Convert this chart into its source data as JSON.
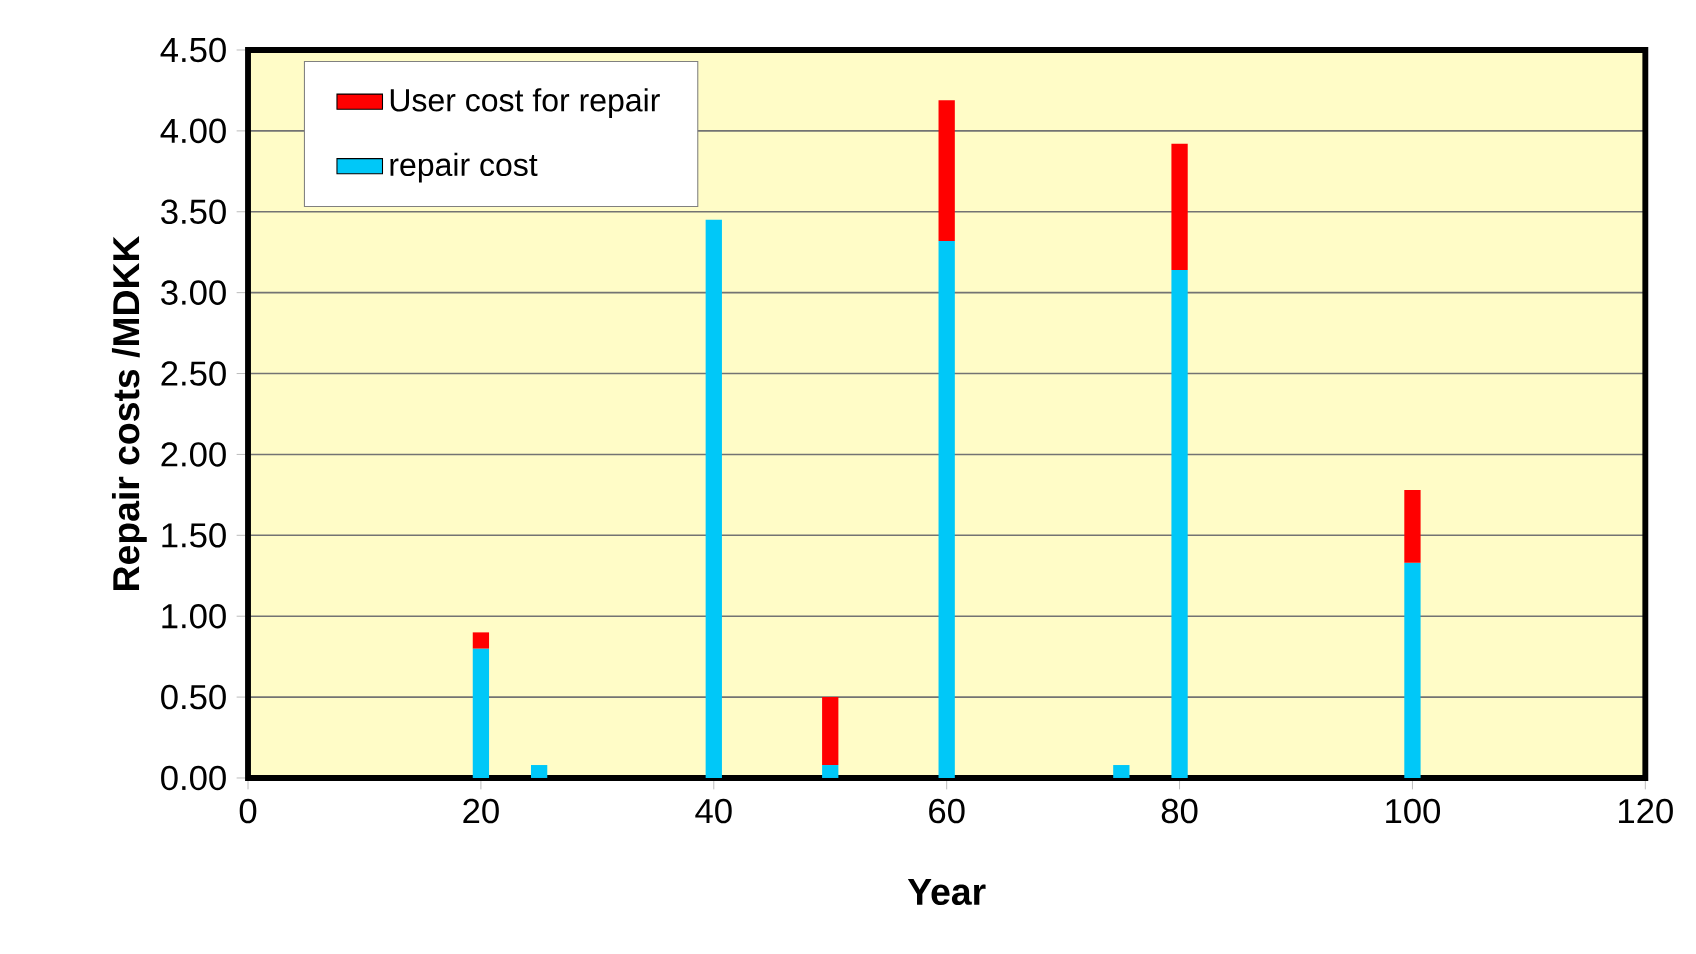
{
  "chart_data": {
    "type": "bar",
    "stacked": true,
    "xlabel": "Year",
    "ylabel": "Repair costs /MDKK",
    "x": [
      20,
      25,
      40,
      50,
      60,
      75,
      80,
      100
    ],
    "series": [
      {
        "name": "repair cost",
        "color": "#00c8f8",
        "values": [
          0.8,
          0.08,
          3.45,
          0.08,
          3.32,
          0.08,
          3.14,
          1.33
        ]
      },
      {
        "name": "User cost for repair",
        "color": "#ff0000",
        "values": [
          0.1,
          null,
          null,
          0.42,
          0.87,
          null,
          0.78,
          0.45
        ]
      }
    ],
    "xlim": [
      0,
      120
    ],
    "xticks": [
      0,
      20,
      40,
      60,
      80,
      100,
      120
    ],
    "ylim": [
      0,
      4.5
    ],
    "yticks": [
      {
        "value": 0,
        "label": "0.00"
      },
      {
        "value": 0.5,
        "label": "0.50"
      },
      {
        "value": 1,
        "label": "1.00"
      },
      {
        "value": 1.5,
        "label": "1.50"
      },
      {
        "value": 2,
        "label": "2.00"
      },
      {
        "value": 2.5,
        "label": "2.50"
      },
      {
        "value": 3,
        "label": "3.00"
      },
      {
        "value": 3.5,
        "label": "3.50"
      },
      {
        "value": 4,
        "label": "4.00"
      },
      {
        "value": 4.5,
        "label": "4.50"
      }
    ],
    "grid": "y",
    "legend": "top left"
  }
}
